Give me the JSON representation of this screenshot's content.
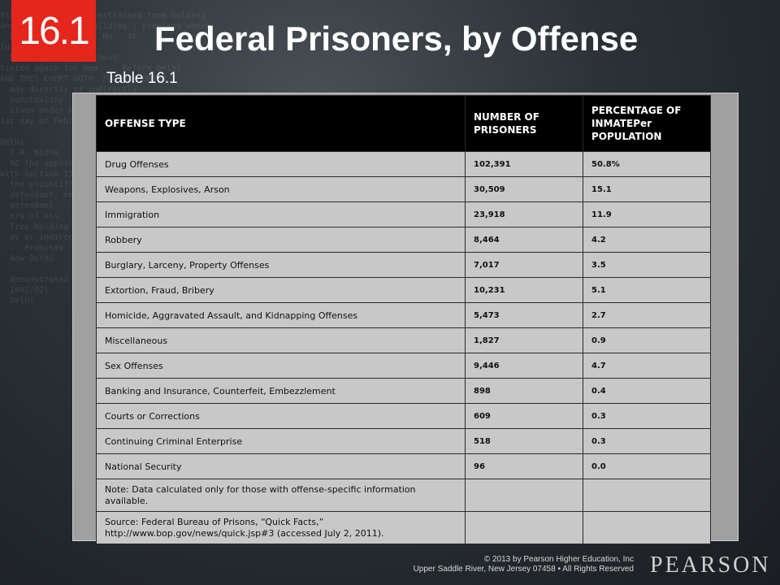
{
  "slide": {
    "badge": "16.1",
    "title": "Federal Prisoners, by Offense",
    "subtitle": "Table 16.1"
  },
  "table": {
    "headers": [
      "OFFENSE TYPE",
      "NUMBER OF PRISONERS",
      "PERCENTAGE OF INMATEPer POPULATION"
    ],
    "rows": [
      {
        "offense": "Drug Offenses",
        "number": "102,391",
        "percent": "50.8%"
      },
      {
        "offense": "Weapons, Explosives, Arson",
        "number": "30,509",
        "percent": "15.1"
      },
      {
        "offense": "Immigration",
        "number": "23,918",
        "percent": "11.9"
      },
      {
        "offense": "Robbery",
        "number": "8,464",
        "percent": "4.2"
      },
      {
        "offense": "Burglary, Larceny, Property Offenses",
        "number": "7,017",
        "percent": "3.5"
      },
      {
        "offense": "Extortion, Fraud, Bribery",
        "number": "10,231",
        "percent": "5.1"
      },
      {
        "offense": "Homicide, Aggravated Assault, and Kidnapping Offenses",
        "number": "5,473",
        "percent": "2.7"
      },
      {
        "offense": "Miscellaneous",
        "number": "1,827",
        "percent": "0.9"
      },
      {
        "offense": "Sex Offenses",
        "number": "9,446",
        "percent": "4.7"
      },
      {
        "offense": "Banking and Insurance, Counterfeit, Embezzlement",
        "number": "898",
        "percent": "0.4"
      },
      {
        "offense": "Courts or Corrections",
        "number": "609",
        "percent": "0.3"
      },
      {
        "offense": "Continuing Criminal Enterprise",
        "number": "518",
        "percent": "0.3"
      },
      {
        "offense": "National Security",
        "number": "96",
        "percent": "0.0"
      }
    ],
    "note": "Note: Data calculated  only for those with offense-specific information available.",
    "source": "Source: Federal Bureau of Prisons, “Quick Facts,” http://www.bop.gov/news/quick.jsp#3 (accessed  July 2, 2011)."
  },
  "footer": {
    "copyright_line1": "© 2013 by Pearson Higher Education, Inc",
    "copyright_line2": "Upper Saddle River, New Jersey 07458 • All Rights Reserved",
    "brand": "PEARSON"
  }
}
